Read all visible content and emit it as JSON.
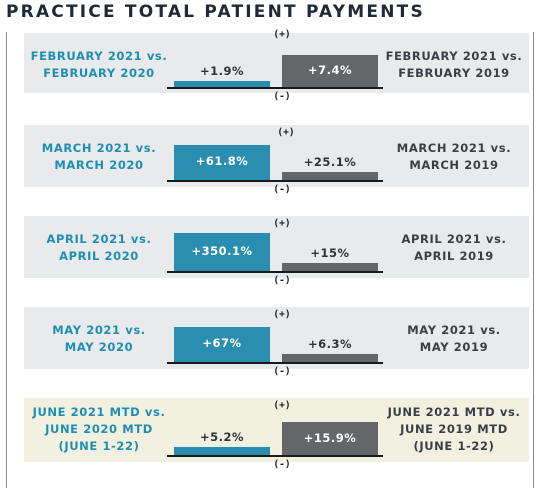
{
  "title": "PRACTICE TOTAL PATIENT PAYMENTS",
  "colors": {
    "current_vs_2020": "#2a8eb1",
    "current_vs_2019": "#64666a",
    "panel": "#e9eaeb",
    "panel_highlight": "#f2f1e1"
  },
  "signs": {
    "plus": "(+)",
    "minus": "(-)"
  },
  "chart_data": {
    "type": "bar",
    "orientation": "vertical",
    "legend": "none",
    "rows": [
      {
        "left_label": [
          "FEBRUARY 2021 vs.",
          "FEBRUARY 2020"
        ],
        "right_label": [
          "FEBRUARY 2021 vs.",
          "FEBRUARY 2019"
        ],
        "vs_2020": {
          "value": 1.9,
          "label": "+1.9%"
        },
        "vs_2019": {
          "value": 7.4,
          "label": "+7.4%"
        }
      },
      {
        "left_label": [
          "MARCH 2021 vs.",
          "MARCH 2020"
        ],
        "right_label": [
          "MARCH 2021 vs.",
          "MARCH 2019"
        ],
        "vs_2020": {
          "value": 61.8,
          "label": "+61.8%"
        },
        "vs_2019": {
          "value": 25.1,
          "label": "+25.1%"
        }
      },
      {
        "left_label": [
          "APRIL 2021 vs.",
          "APRIL 2020"
        ],
        "right_label": [
          "APRIL 2021 vs.",
          "APRIL 2019"
        ],
        "vs_2020": {
          "value": 350.1,
          "label": "+350.1%"
        },
        "vs_2019": {
          "value": 15,
          "label": "+15%"
        }
      },
      {
        "left_label": [
          "MAY 2021 vs.",
          "MAY 2020"
        ],
        "right_label": [
          "MAY 2021 vs.",
          "MAY 2019"
        ],
        "vs_2020": {
          "value": 67,
          "label": "+67%"
        },
        "vs_2019": {
          "value": 6.3,
          "label": "+6.3%"
        }
      },
      {
        "left_label": [
          "JUNE 2021 MTD vs.",
          "JUNE 2020 MTD",
          "(JUNE 1-22)"
        ],
        "right_label": [
          "JUNE 2021 MTD vs.",
          "JUNE 2019 MTD",
          "(JUNE 1-22)"
        ],
        "vs_2020": {
          "value": 5.2,
          "label": "+5.2%"
        },
        "vs_2019": {
          "value": 15.9,
          "label": "+15.9%"
        },
        "highlight": true
      }
    ]
  }
}
